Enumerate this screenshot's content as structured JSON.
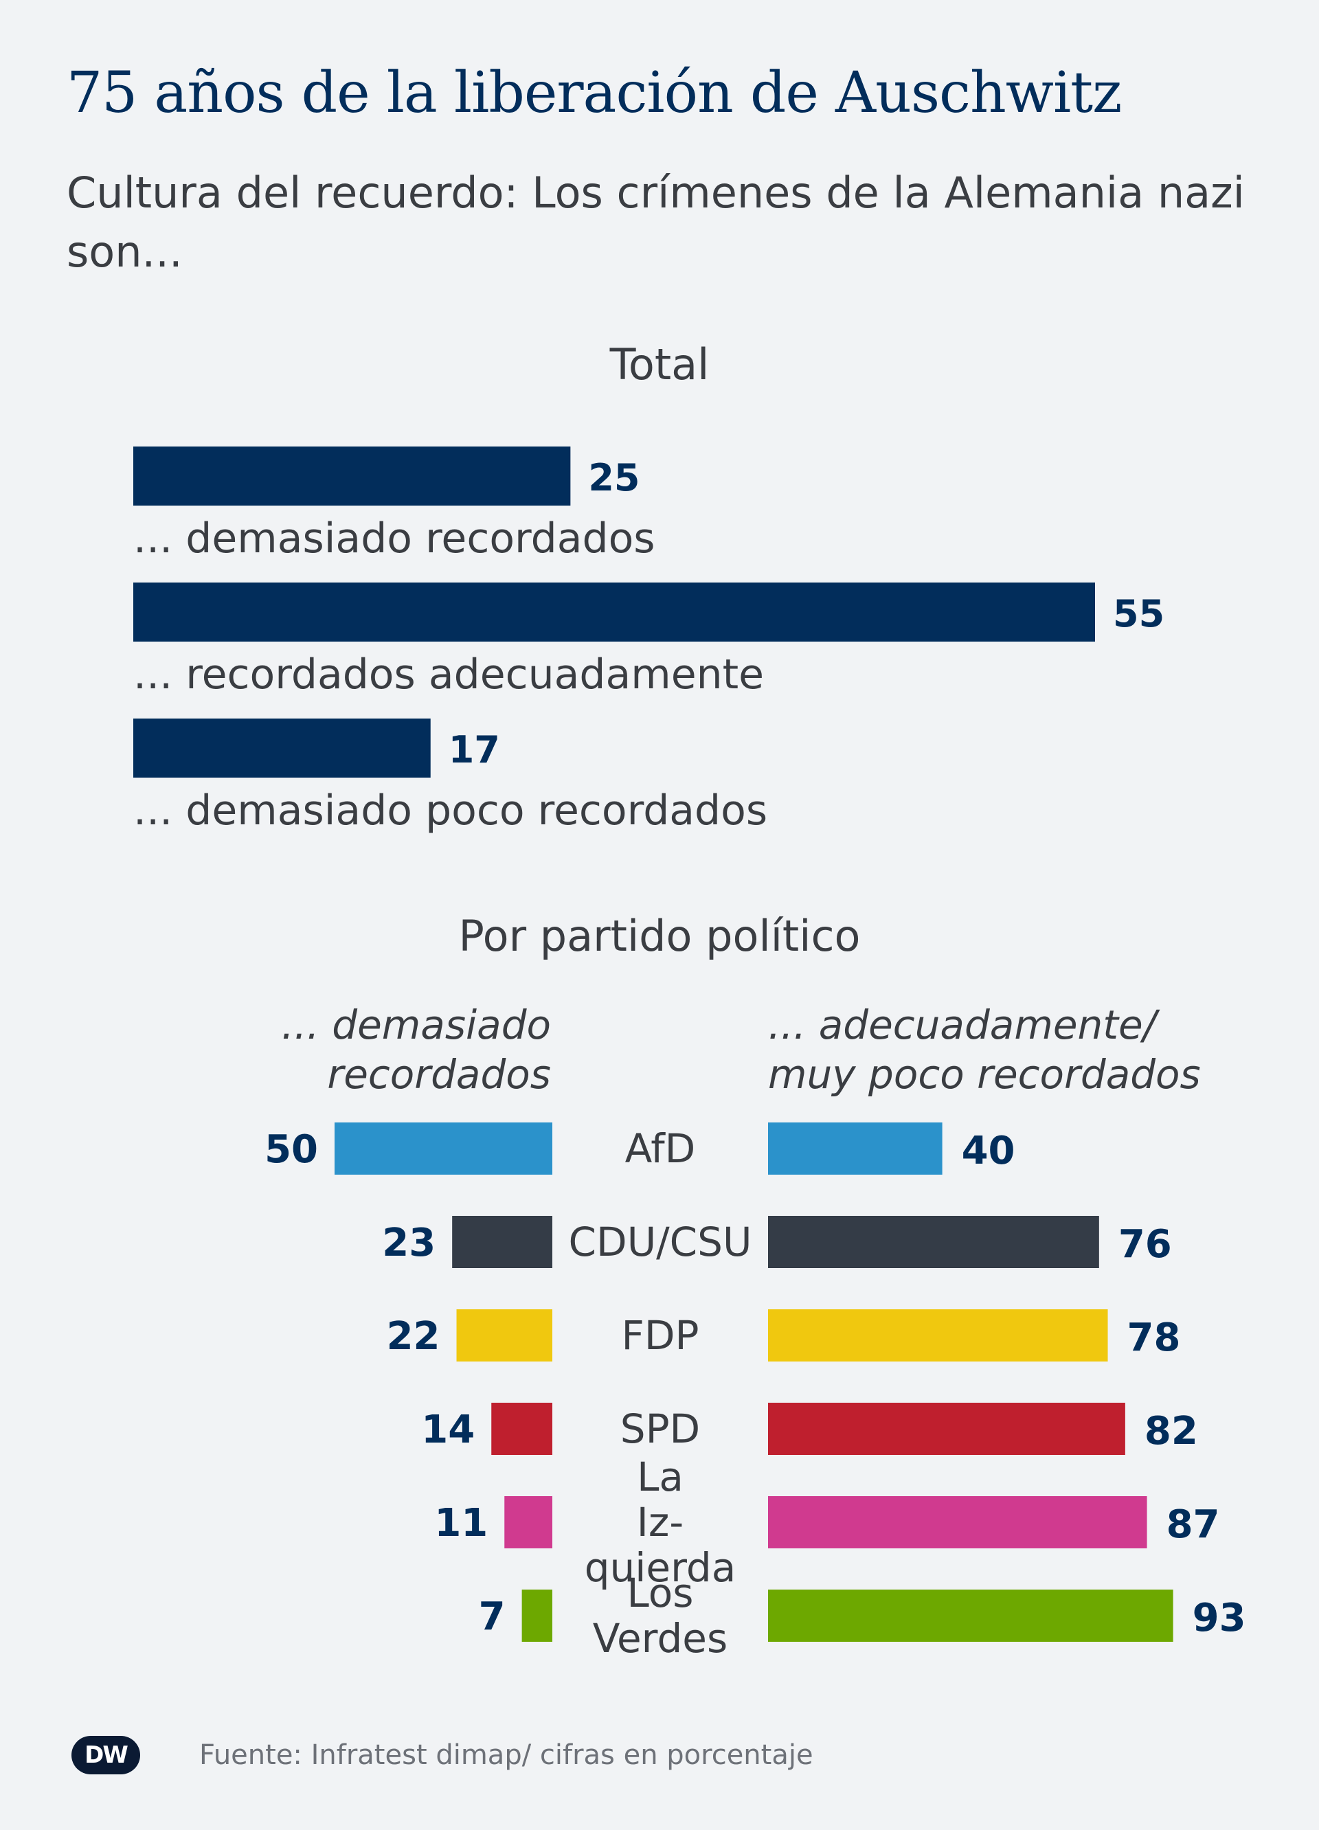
{
  "title": "75 años de la liberación de Auschwitz",
  "subtitle": "Cultura del recuerdo: Los crímenes de la Alemania nazi son...",
  "footer": {
    "logo": "DW",
    "source": "Fuente: Infratest dimap/ cifras en porcentaje"
  },
  "chart_data": [
    {
      "type": "bar",
      "title": "Total",
      "orientation": "horizontal",
      "unit": "%",
      "xlim": [
        0,
        60
      ],
      "color": "#022d5b",
      "categories": [
        "... demasiado recordados",
        "... recordados adecuadamente",
        "... demasiado poco recordados"
      ],
      "values": [
        25,
        55,
        17
      ]
    },
    {
      "type": "bar",
      "title": "Por partido político",
      "orientation": "horizontal-diverging",
      "unit": "%",
      "xlim": [
        0,
        100
      ],
      "categories": [
        "AfD",
        "CDU/CSU",
        "FDP",
        "SPD",
        "La Iz- quierda",
        "Los Verdes"
      ],
      "colors": [
        "#2b92cb",
        "#343c47",
        "#f0c80f",
        "#bf1f2e",
        "#d03a8f",
        "#6da800"
      ],
      "series": [
        {
          "name": "... demasiado recordados",
          "values": [
            50,
            23,
            22,
            14,
            11,
            7
          ]
        },
        {
          "name": "... adecuadamente/ muy poco recordados",
          "values": [
            40,
            76,
            78,
            82,
            87,
            93
          ]
        }
      ]
    }
  ]
}
